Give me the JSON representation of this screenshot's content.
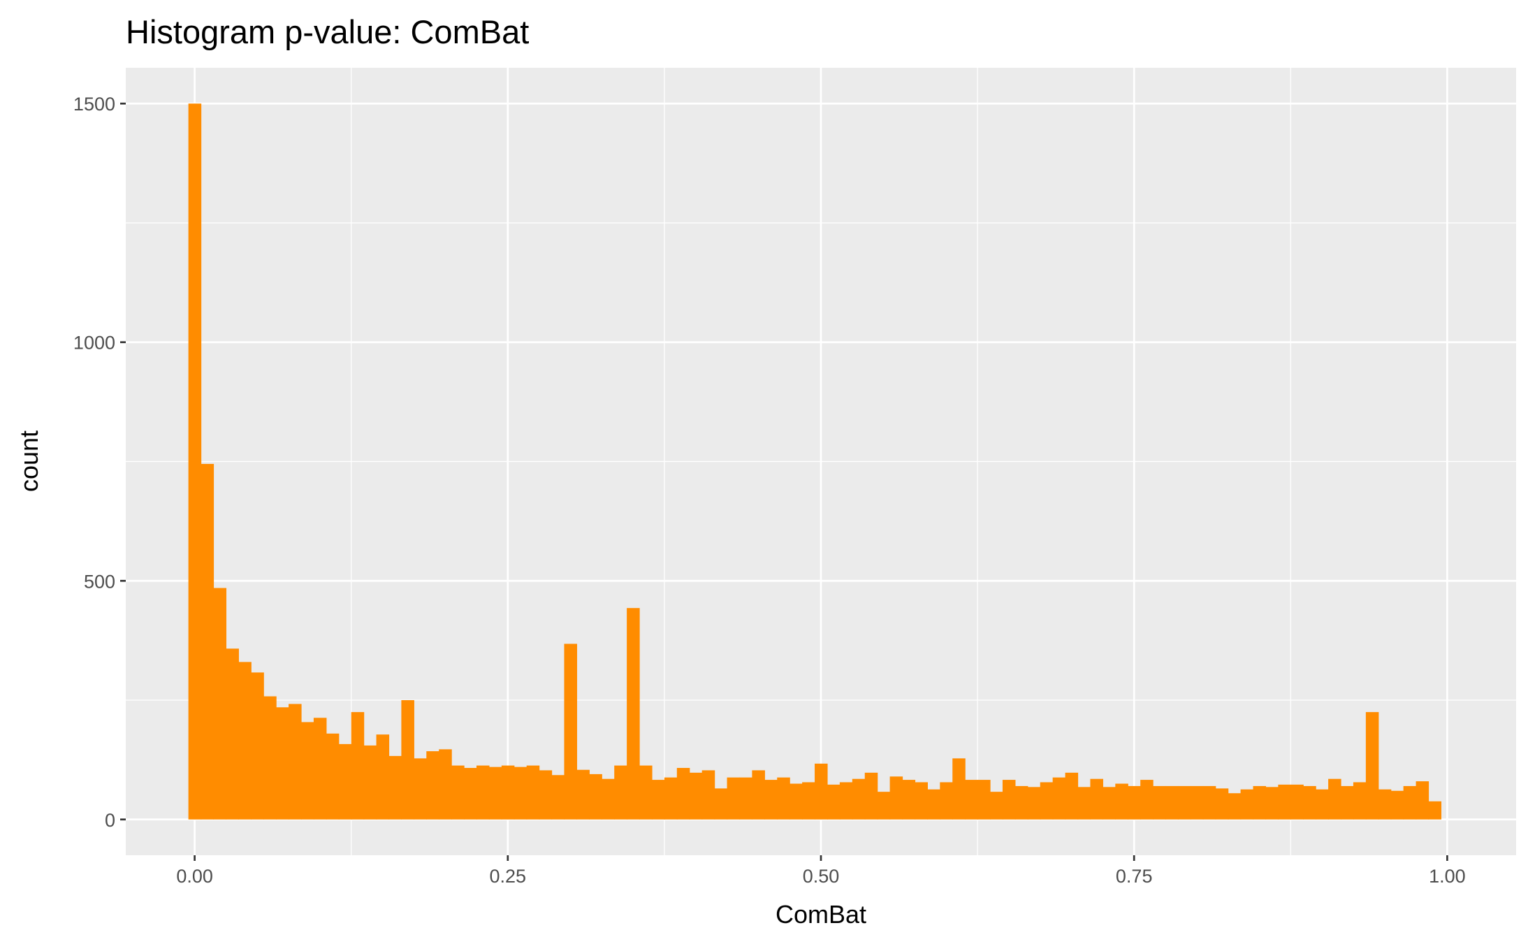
{
  "chart_data": {
    "type": "histogram",
    "title": "Histogram p-value: ComBat",
    "xlabel": "ComBat",
    "ylabel": "count",
    "xlim": [
      -0.055,
      1.055
    ],
    "ylim": [
      -75,
      1575
    ],
    "x_ticks": [
      0.0,
      0.25,
      0.5,
      0.75,
      1.0
    ],
    "x_tick_labels": [
      "0.00",
      "0.25",
      "0.50",
      "0.75",
      "1.00"
    ],
    "y_ticks": [
      0,
      500,
      1000,
      1500
    ],
    "y_tick_labels": [
      "0",
      "500",
      "1000",
      "1500"
    ],
    "grid": true,
    "bin_start": -0.005,
    "bin_width": 0.01,
    "bar_color": "#FF8C00",
    "panel_color": "#EBEBEB",
    "grid_color": "#FFFFFF",
    "values": [
      1500,
      745,
      485,
      358,
      330,
      308,
      258,
      235,
      242,
      204,
      213,
      180,
      158,
      225,
      155,
      178,
      133,
      250,
      128,
      143,
      147,
      113,
      108,
      113,
      110,
      113,
      110,
      113,
      103,
      93,
      368,
      104,
      95,
      85,
      113,
      443,
      113,
      83,
      88,
      108,
      98,
      103,
      65,
      88,
      88,
      103,
      83,
      88,
      75,
      78,
      117,
      73,
      78,
      85,
      98,
      58,
      90,
      83,
      78,
      63,
      78,
      128,
      83,
      83,
      58,
      83,
      70,
      68,
      78,
      88,
      98,
      68,
      85,
      68,
      75,
      70,
      83,
      70,
      70,
      70,
      70,
      70,
      65,
      55,
      63,
      70,
      68,
      73,
      73,
      70,
      63,
      85,
      70,
      78,
      225,
      63,
      60,
      70,
      80,
      38
    ]
  }
}
